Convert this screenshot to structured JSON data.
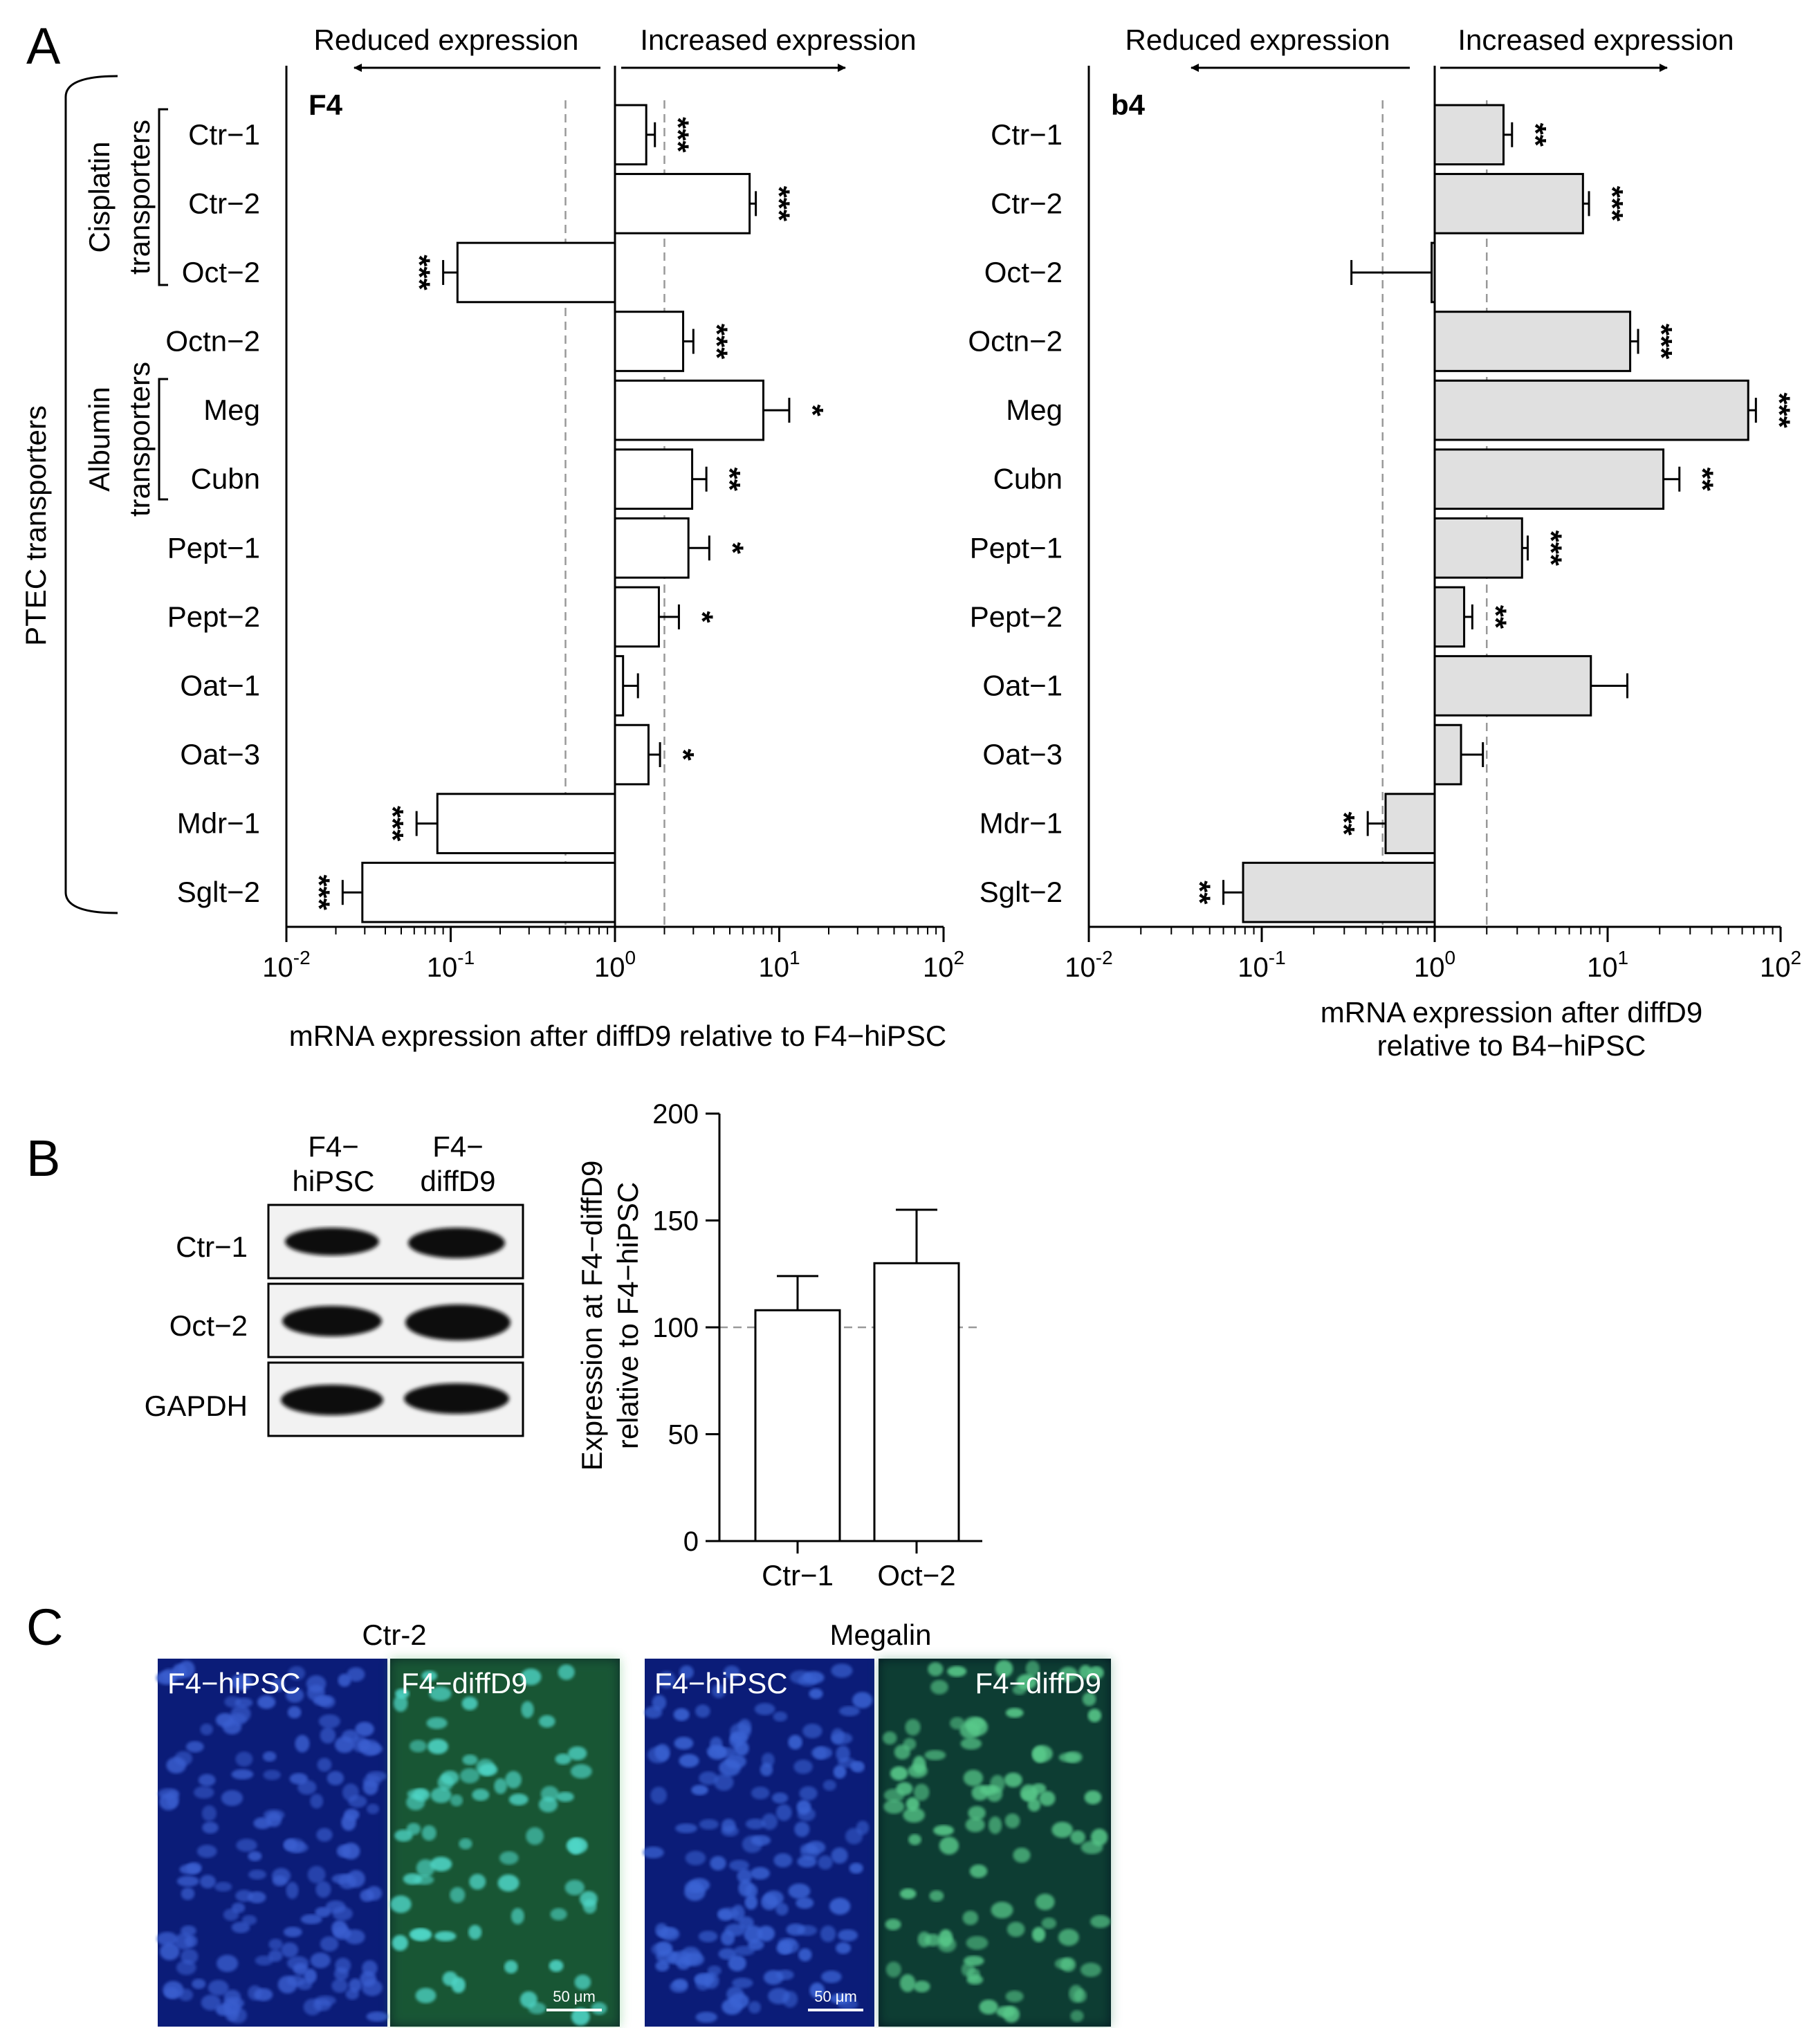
{
  "panels": {
    "a": "A",
    "b": "B",
    "c": "C"
  },
  "panel_a": {
    "direction": {
      "reduced": "Reduced expression",
      "increased": "Increased expression"
    },
    "group_main": "PTEC transporters",
    "group_cisplatin": [
      "Cisplatin",
      "transporters"
    ],
    "group_albumin": [
      "Albumin",
      "transporters"
    ],
    "tick_labels": [
      "10-2",
      "10-1",
      "100",
      "101",
      "102"
    ]
  },
  "chart_data": [
    {
      "type": "bar",
      "orientation": "horizontal",
      "title": "F4",
      "xlabel": "mRNA expression after diffD9 relative to F4−hiPSC",
      "xscale": "log",
      "xlim": [
        0.01,
        100
      ],
      "reference_lines": [
        0.5,
        2
      ],
      "bar_color": "#ffffff",
      "categories": [
        "Ctr−1",
        "Ctr−2",
        "Oct−2",
        "Octn−2",
        "Meg",
        "Cubn",
        "Pept−1",
        "Pept−2",
        "Oat−1",
        "Oat−3",
        "Mdr−1",
        "Sglt−2"
      ],
      "values": [
        1.55,
        6.6,
        0.11,
        2.6,
        8.0,
        2.95,
        2.8,
        1.85,
        1.12,
        1.6,
        0.083,
        0.029
      ],
      "error_ends": [
        1.75,
        7.2,
        0.09,
        3.0,
        11.5,
        3.6,
        3.75,
        2.45,
        1.38,
        1.88,
        0.062,
        0.022
      ],
      "significance": [
        "***",
        "***",
        "***",
        "***",
        "*",
        "**",
        "*",
        "*",
        "",
        "*",
        "***",
        "***"
      ]
    },
    {
      "type": "bar",
      "orientation": "horizontal",
      "title": "b4",
      "xlabel": "mRNA expression after diffD9 relative to B4−hiPSC",
      "xscale": "log",
      "xlim": [
        0.01,
        100
      ],
      "reference_lines": [
        0.5,
        2
      ],
      "bar_color": "#e0e0e0",
      "categories": [
        "Ctr−1",
        "Ctr−2",
        "Oct−2",
        "Octn−2",
        "Meg",
        "Cubn",
        "Pept−1",
        "Pept−2",
        "Oat−1",
        "Oat−3",
        "Mdr−1",
        "Sglt−2"
      ],
      "values": [
        2.5,
        7.2,
        0.96,
        13.5,
        65,
        21,
        3.2,
        1.48,
        8.0,
        1.42,
        0.52,
        0.078
      ],
      "error_ends": [
        2.8,
        7.8,
        0.33,
        15.0,
        72,
        26,
        3.45,
        1.65,
        13.0,
        1.9,
        0.41,
        0.06
      ],
      "significance": [
        "**",
        "***",
        "",
        "***",
        "***",
        "**",
        "***",
        "**",
        "",
        "",
        "**",
        "**"
      ]
    },
    {
      "type": "bar",
      "orientation": "vertical",
      "ylabel": [
        "Expression at F4−diffD9",
        "relative to F4−hiPSC"
      ],
      "ylim": [
        0,
        200
      ],
      "yticks": [
        0,
        50,
        100,
        150,
        200
      ],
      "reference_lines": [
        100
      ],
      "bar_color": "#ffffff",
      "categories": [
        "Ctr−1",
        "Oct−2"
      ],
      "values": [
        108,
        130
      ],
      "error_ends": [
        124,
        155
      ]
    }
  ],
  "panel_b": {
    "lanes": [
      [
        "F4−",
        "hiPSC"
      ],
      [
        "F4−",
        "diffD9"
      ]
    ],
    "rows": [
      "Ctr−1",
      "Oct−2",
      "GAPDH"
    ]
  },
  "panel_c": {
    "groups": [
      "Ctr-2",
      "Megalin"
    ],
    "images": [
      "F4−hiPSC",
      "F4−diffD9",
      "F4−hiPSC",
      "F4−diffD9"
    ],
    "scale_bar": "50 μm"
  }
}
